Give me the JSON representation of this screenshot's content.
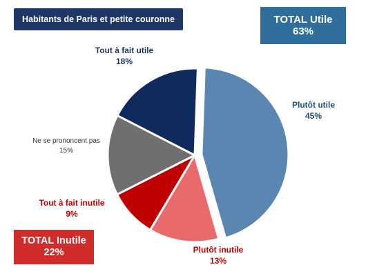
{
  "header": {
    "title": "Habitants de Paris et petite couronne"
  },
  "totals": {
    "utile": {
      "label": "TOTAL Utile",
      "value": "63%",
      "color": "#2f6e9a"
    },
    "inutile": {
      "label": "TOTAL Inutile",
      "value": "22%",
      "color": "#d12c2c"
    }
  },
  "chart_data": {
    "type": "pie",
    "slices": [
      {
        "name": "Plutôt utile",
        "value": 45,
        "value_label": "45%",
        "color": "#5a87b1",
        "label_color": "#1f4e79"
      },
      {
        "name": "Plutôt inutile",
        "value": 13,
        "value_label": "13%",
        "color": "#e86a6a",
        "label_color": "#c00000"
      },
      {
        "name": "Tout à fait inutile",
        "value": 9,
        "value_label": "9%",
        "color": "#c00000",
        "label_color": "#c00000"
      },
      {
        "name": "Ne se prononcent pas",
        "value": 15,
        "value_label": "15%",
        "color": "#6f6f6f",
        "label_color": "#333333"
      },
      {
        "name": "Tout à fait utile",
        "value": 18,
        "value_label": "18%",
        "color": "#0f2a5c",
        "label_color": "#1f3764"
      }
    ]
  }
}
